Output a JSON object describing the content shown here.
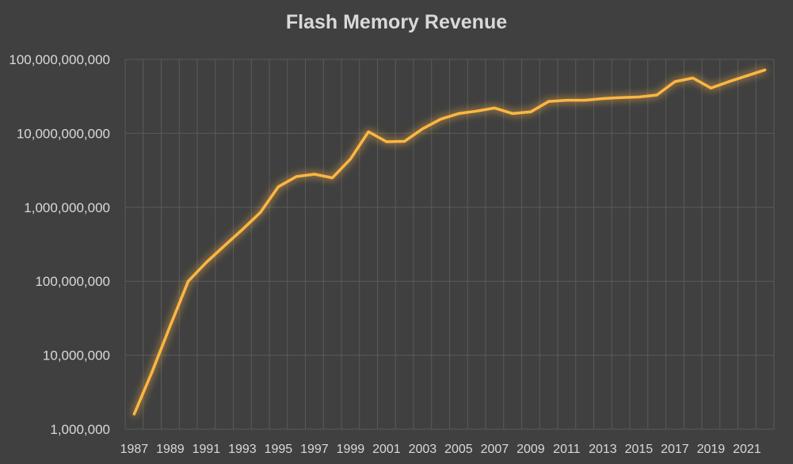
{
  "chart_data": {
    "type": "line",
    "title": "Flash Memory Revenue",
    "xlabel": "",
    "ylabel": "",
    "yscale": "log",
    "ylim": [
      1000000,
      100000000000
    ],
    "xlim": [
      1987,
      2022
    ],
    "grid": true,
    "legend": "none",
    "y_ticks": [
      {
        "value": 1000000,
        "label": "1,000,000"
      },
      {
        "value": 10000000,
        "label": "10,000,000"
      },
      {
        "value": 100000000,
        "label": "100,000,000"
      },
      {
        "value": 1000000000,
        "label": "1,000,000,000"
      },
      {
        "value": 10000000000,
        "label": "10,000,000,000"
      },
      {
        "value": 100000000000,
        "label": "100,000,000,000"
      }
    ],
    "x_ticks": [
      "1987",
      "1989",
      "1991",
      "1993",
      "1995",
      "1997",
      "1999",
      "2001",
      "2003",
      "2005",
      "2007",
      "2009",
      "2011",
      "2013",
      "2015",
      "2017",
      "2019",
      "2021"
    ],
    "series": [
      {
        "color": "#ffb642",
        "x": [
          1987,
          1988,
          1989,
          1990,
          1991,
          1992,
          1993,
          1994,
          1995,
          1996,
          1997,
          1998,
          1999,
          2000,
          2001,
          2002,
          2003,
          2004,
          2005,
          2006,
          2007,
          2008,
          2009,
          2010,
          2011,
          2012,
          2013,
          2014,
          2015,
          2016,
          2017,
          2018,
          2019,
          2020,
          2021,
          2022
        ],
        "values": [
          1600000,
          6000000,
          25000000,
          100000000,
          180000000,
          300000000,
          500000000,
          850000000,
          1900000000,
          2600000000,
          2800000000,
          2500000000,
          4500000000,
          10500000000,
          7700000000,
          7800000000,
          11500000000,
          15500000000,
          18500000000,
          20000000000,
          22000000000,
          18500000000,
          19500000000,
          27000000000,
          28000000000,
          28000000000,
          29500000000,
          30500000000,
          31000000000,
          33000000000,
          50000000000,
          56000000000,
          41000000000,
          50000000000,
          60000000000,
          72000000000
        ]
      }
    ]
  }
}
